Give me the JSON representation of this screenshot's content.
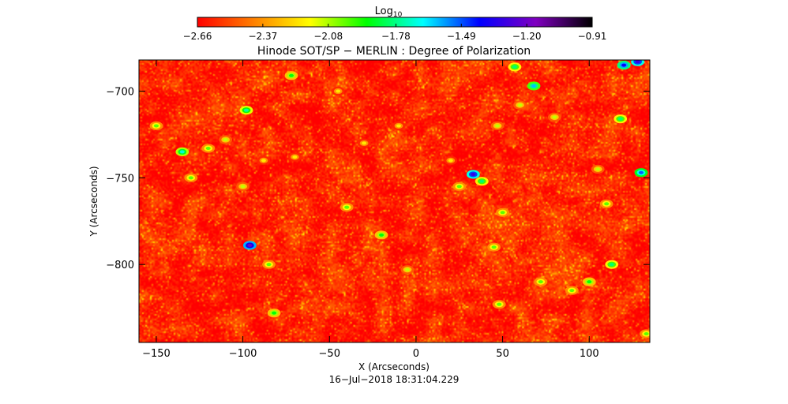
{
  "chart_data": {
    "type": "heatmap",
    "title": "Hinode SOT/SP − MERLIN : Degree of Polarization",
    "xlabel": "X (Arcseconds)",
    "ylabel": "Y (Arcseconds)",
    "timestamp": "16−Jul−2018 18:31:04.229",
    "xlim": [
      -160,
      135
    ],
    "ylim": [
      -845,
      -682
    ],
    "x_ticks": [
      -150,
      -100,
      -50,
      0,
      50,
      100
    ],
    "x_tick_labels": [
      "−150",
      "−100",
      "−50",
      "0",
      "50",
      "100"
    ],
    "y_ticks": [
      -700,
      -750,
      -800
    ],
    "y_tick_labels": [
      "−700",
      "−750",
      "−800"
    ],
    "colorbar": {
      "label_base": "Log",
      "label_sub": "10",
      "min": -2.66,
      "max": -0.91,
      "ticks": [
        -2.66,
        -2.37,
        -2.08,
        -1.78,
        -1.49,
        -1.2,
        -0.91
      ],
      "tick_labels": [
        "−2.66",
        "−2.37",
        "−2.08",
        "−1.78",
        "−1.49",
        "−1.20",
        "−0.91"
      ],
      "colormap": [
        "#ff0000",
        "#ff8000",
        "#ffff00",
        "#00ff00",
        "#00ffff",
        "#0000ff",
        "#8000c0",
        "#000000"
      ]
    },
    "background_level": -2.6,
    "features": [
      {
        "x": -150,
        "y": -720,
        "v": -2.0
      },
      {
        "x": -135,
        "y": -735,
        "v": -1.7
      },
      {
        "x": -130,
        "y": -750,
        "v": -2.0
      },
      {
        "x": -120,
        "y": -733,
        "v": -2.0
      },
      {
        "x": -110,
        "y": -728,
        "v": -2.1
      },
      {
        "x": -98,
        "y": -711,
        "v": -1.75
      },
      {
        "x": -96,
        "y": -789,
        "v": -1.2
      },
      {
        "x": -100,
        "y": -755,
        "v": -2.1
      },
      {
        "x": -88,
        "y": -740,
        "v": -2.2
      },
      {
        "x": -85,
        "y": -800,
        "v": -2.0
      },
      {
        "x": -82,
        "y": -828,
        "v": -1.9
      },
      {
        "x": -72,
        "y": -691,
        "v": -1.9
      },
      {
        "x": -70,
        "y": -738,
        "v": -2.2
      },
      {
        "x": -45,
        "y": -700,
        "v": -2.2
      },
      {
        "x": -40,
        "y": -767,
        "v": -2.0
      },
      {
        "x": -30,
        "y": -730,
        "v": -2.2
      },
      {
        "x": -20,
        "y": -783,
        "v": -1.9
      },
      {
        "x": -10,
        "y": -720,
        "v": -2.2
      },
      {
        "x": -5,
        "y": -803,
        "v": -2.1
      },
      {
        "x": 20,
        "y": -740,
        "v": -2.2
      },
      {
        "x": 25,
        "y": -755,
        "v": -2.0
      },
      {
        "x": 33,
        "y": -748,
        "v": -1.3
      },
      {
        "x": 38,
        "y": -752,
        "v": -1.8
      },
      {
        "x": 47,
        "y": -720,
        "v": -2.1
      },
      {
        "x": 45,
        "y": -790,
        "v": -2.0
      },
      {
        "x": 48,
        "y": -823,
        "v": -2.0
      },
      {
        "x": 50,
        "y": -770,
        "v": -2.0
      },
      {
        "x": 57,
        "y": -686,
        "v": -1.8
      },
      {
        "x": 60,
        "y": -708,
        "v": -2.1
      },
      {
        "x": 68,
        "y": -697,
        "v": -1.6
      },
      {
        "x": 72,
        "y": -810,
        "v": -2.0
      },
      {
        "x": 80,
        "y": -715,
        "v": -2.1
      },
      {
        "x": 90,
        "y": -815,
        "v": -2.0
      },
      {
        "x": 100,
        "y": -810,
        "v": -1.9
      },
      {
        "x": 105,
        "y": -745,
        "v": -2.1
      },
      {
        "x": 110,
        "y": -765,
        "v": -2.0
      },
      {
        "x": 113,
        "y": -800,
        "v": -1.8
      },
      {
        "x": 118,
        "y": -716,
        "v": -1.8
      },
      {
        "x": 120,
        "y": -685,
        "v": -1.4
      },
      {
        "x": 128,
        "y": -683,
        "v": -1.3
      },
      {
        "x": 130,
        "y": -747,
        "v": -1.5
      },
      {
        "x": 133,
        "y": -840,
        "v": -2.0
      }
    ]
  }
}
